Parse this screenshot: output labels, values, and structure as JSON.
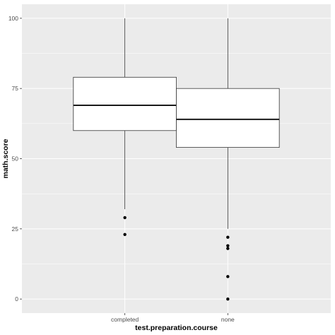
{
  "chart_data": {
    "type": "boxplot",
    "xlabel": "test.preparation.course",
    "ylabel": "math.score",
    "categories": [
      "completed",
      "none"
    ],
    "ylim": [
      -5,
      105
    ],
    "yticks": [
      0,
      25,
      50,
      75,
      100
    ],
    "grid": true,
    "boxes": [
      {
        "category": "completed",
        "min": 32,
        "q1": 60,
        "median": 69,
        "q3": 79,
        "max": 100,
        "outliers": [
          29,
          23
        ]
      },
      {
        "category": "none",
        "min": 25,
        "q1": 54,
        "median": 64,
        "q3": 75,
        "max": 100,
        "outliers": [
          22,
          19,
          18,
          8,
          0
        ]
      }
    ],
    "colors": {
      "panel": "#ebebeb",
      "grid_major": "#ffffff",
      "box_fill": "#ffffff",
      "box_line": "#333333",
      "outlier": "#000000"
    }
  }
}
